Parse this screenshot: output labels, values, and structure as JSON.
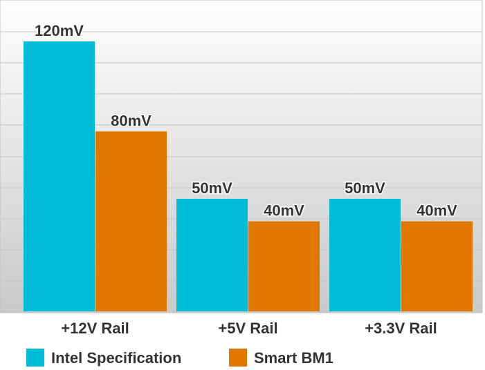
{
  "chart_data": {
    "type": "bar",
    "categories": [
      "+12V Rail",
      "+5V Rail",
      "+3.3V Rail"
    ],
    "series": [
      {
        "name": "Intel Specification",
        "values": [
          120,
          50,
          50
        ],
        "labels": [
          "120mV",
          "50mV",
          "50mV"
        ],
        "color": "#00bcd9"
      },
      {
        "name": "Smart BM1",
        "values": [
          80,
          40,
          40
        ],
        "labels": [
          "80mV",
          "40mV",
          "40mV"
        ],
        "color": "#e07800"
      }
    ],
    "title": "",
    "xlabel": "",
    "ylabel": "",
    "ylim": [
      0,
      130
    ],
    "grid": true,
    "legend_position": "bottom-left"
  }
}
